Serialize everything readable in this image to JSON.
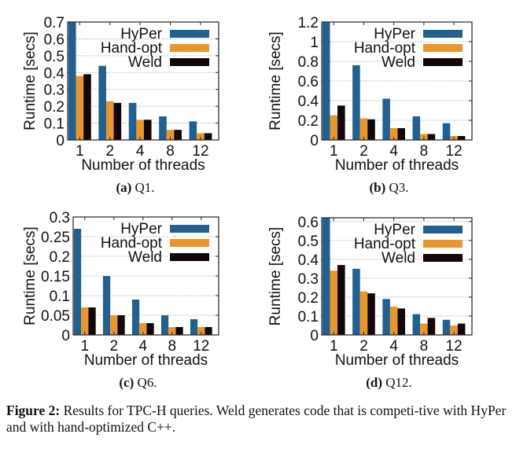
{
  "figure": {
    "caption_label": "Figure 2:",
    "caption_text": " Results for TPC-H queries. Weld generates code that is competi-tive with HyPer and with hand-optimized C++."
  },
  "colors": {
    "HyPer": "#22608f",
    "Hand-opt": "#e9962e",
    "Weld": "#120607"
  },
  "chart_data": [
    {
      "type": "bar",
      "id": "a",
      "subcaption_label": "(a)",
      "subcaption_text": "Q1.",
      "xlabel": "Number of threads",
      "ylabel": "Runtime [secs]",
      "categories": [
        "1",
        "2",
        "4",
        "8",
        "12"
      ],
      "ylim": [
        0,
        0.7
      ],
      "yticks": [
        0,
        0.1,
        0.2,
        0.3,
        0.4,
        0.5,
        0.6,
        0.7
      ],
      "ytick_labels": [
        "0",
        "0.1",
        "0.2",
        "0.3",
        "0.4",
        "0.5",
        "0.6",
        "0.7"
      ],
      "grid": true,
      "legend": "top-right",
      "series": [
        {
          "name": "HyPer",
          "values": [
            0.7,
            0.44,
            0.22,
            0.14,
            0.11
          ]
        },
        {
          "name": "Hand-opt",
          "values": [
            0.38,
            0.23,
            0.12,
            0.06,
            0.04
          ]
        },
        {
          "name": "Weld",
          "values": [
            0.39,
            0.22,
            0.12,
            0.06,
            0.04
          ]
        }
      ]
    },
    {
      "type": "bar",
      "id": "b",
      "subcaption_label": "(b)",
      "subcaption_text": "Q3.",
      "xlabel": "Number of threads",
      "ylabel": "Runtime [secs]",
      "categories": [
        "1",
        "2",
        "4",
        "8",
        "12"
      ],
      "ylim": [
        0,
        1.2
      ],
      "yticks": [
        0,
        0.2,
        0.4,
        0.6,
        0.8,
        1,
        1.2
      ],
      "ytick_labels": [
        "0",
        "0.2",
        "0.4",
        "0.6",
        "0.8",
        "1",
        "1.2"
      ],
      "grid": true,
      "legend": "top-right",
      "series": [
        {
          "name": "HyPer",
          "values": [
            1.2,
            0.76,
            0.42,
            0.24,
            0.17
          ]
        },
        {
          "name": "Hand-opt",
          "values": [
            0.25,
            0.22,
            0.12,
            0.06,
            0.04
          ]
        },
        {
          "name": "Weld",
          "values": [
            0.35,
            0.21,
            0.12,
            0.06,
            0.04
          ]
        }
      ]
    },
    {
      "type": "bar",
      "id": "c",
      "subcaption_label": "(c)",
      "subcaption_text": "Q6.",
      "xlabel": "Number of threads",
      "ylabel": "Runtime [secs]",
      "categories": [
        "1",
        "2",
        "4",
        "8",
        "12"
      ],
      "ylim": [
        0,
        0.3
      ],
      "yticks": [
        0,
        0.05,
        0.1,
        0.15,
        0.2,
        0.25,
        0.3
      ],
      "ytick_labels": [
        "0",
        "0.05",
        "0.1",
        "0.15",
        "0.2",
        "0.25",
        "0.3"
      ],
      "grid": true,
      "legend": "top-right",
      "series": [
        {
          "name": "HyPer",
          "values": [
            0.27,
            0.15,
            0.09,
            0.05,
            0.04
          ]
        },
        {
          "name": "Hand-opt",
          "values": [
            0.07,
            0.05,
            0.03,
            0.02,
            0.02
          ]
        },
        {
          "name": "Weld",
          "values": [
            0.07,
            0.05,
            0.03,
            0.02,
            0.02
          ]
        }
      ]
    },
    {
      "type": "bar",
      "id": "d",
      "subcaption_label": "(d)",
      "subcaption_text": "Q12.",
      "xlabel": "Number of threads",
      "ylabel": "Runtime [secs]",
      "categories": [
        "1",
        "2",
        "4",
        "8",
        "12"
      ],
      "ylim": [
        0,
        0.62
      ],
      "yticks": [
        0,
        0.1,
        0.2,
        0.3,
        0.4,
        0.5,
        0.6
      ],
      "ytick_labels": [
        "0",
        "0.1",
        "0.2",
        "0.3",
        "0.4",
        "0.5",
        "0.6"
      ],
      "grid": true,
      "legend": "top-right",
      "series": [
        {
          "name": "HyPer",
          "values": [
            0.62,
            0.35,
            0.19,
            0.11,
            0.08
          ]
        },
        {
          "name": "Hand-opt",
          "values": [
            0.34,
            0.23,
            0.15,
            0.06,
            0.05
          ]
        },
        {
          "name": "Weld",
          "values": [
            0.37,
            0.22,
            0.14,
            0.09,
            0.06
          ]
        }
      ]
    }
  ]
}
